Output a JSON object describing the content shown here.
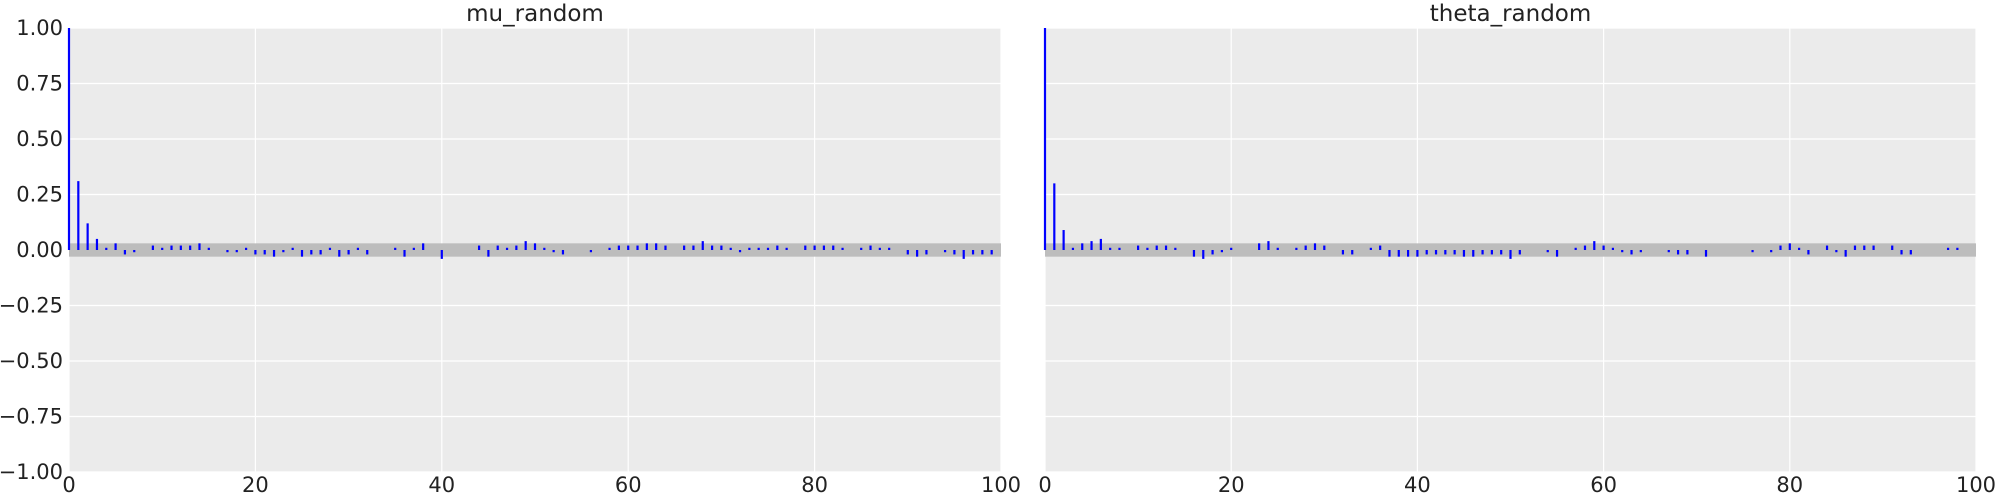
{
  "chart_data": [
    {
      "type": "bar",
      "title": "mu_random",
      "xlabel": "",
      "ylabel": "",
      "xlim": [
        0,
        100
      ],
      "ylim": [
        -1.0,
        1.0
      ],
      "xticks": [
        "0",
        "20",
        "40",
        "60",
        "80",
        "100"
      ],
      "yticks": [
        "−1.00",
        "−0.75",
        "−0.50",
        "−0.25",
        "0.00",
        "0.25",
        "0.50",
        "0.75",
        "1.00"
      ],
      "grid": true,
      "band_half_width": 0.03,
      "lags": [
        0,
        1,
        2,
        3,
        4,
        5,
        6,
        7,
        8,
        9,
        10,
        11,
        12,
        13,
        14,
        15,
        16,
        17,
        18,
        19,
        20,
        21,
        22,
        23,
        24,
        25,
        26,
        27,
        28,
        29,
        30,
        31,
        32,
        33,
        34,
        35,
        36,
        37,
        38,
        39,
        40,
        41,
        42,
        43,
        44,
        45,
        46,
        47,
        48,
        49,
        50,
        51,
        52,
        53,
        54,
        55,
        56,
        57,
        58,
        59,
        60,
        61,
        62,
        63,
        64,
        65,
        66,
        67,
        68,
        69,
        70,
        71,
        72,
        73,
        74,
        75,
        76,
        77,
        78,
        79,
        80,
        81,
        82,
        83,
        84,
        85,
        86,
        87,
        88,
        89,
        90,
        91,
        92,
        93,
        94,
        95,
        96,
        97,
        98,
        99
      ],
      "values": [
        1.0,
        0.31,
        0.12,
        0.05,
        0.01,
        0.03,
        -0.02,
        -0.01,
        0.0,
        0.02,
        0.01,
        0.02,
        0.02,
        0.02,
        0.03,
        0.01,
        0.0,
        -0.01,
        -0.01,
        0.01,
        -0.02,
        -0.02,
        -0.03,
        -0.01,
        0.01,
        -0.03,
        -0.02,
        -0.02,
        0.01,
        -0.03,
        -0.02,
        0.01,
        -0.02,
        0.0,
        0.0,
        0.01,
        -0.03,
        0.01,
        0.03,
        0.0,
        -0.04,
        0.0,
        0.0,
        0.0,
        0.02,
        -0.03,
        0.02,
        0.01,
        0.02,
        0.04,
        0.03,
        0.01,
        -0.01,
        -0.02,
        0.0,
        0.0,
        -0.01,
        0.0,
        0.01,
        0.02,
        0.02,
        0.02,
        0.03,
        0.03,
        0.02,
        0.0,
        0.02,
        0.02,
        0.04,
        0.02,
        0.02,
        0.01,
        -0.01,
        0.01,
        0.01,
        0.01,
        0.02,
        0.01,
        0.0,
        0.02,
        0.02,
        0.02,
        0.02,
        0.01,
        0.0,
        0.01,
        0.02,
        0.01,
        0.01,
        0.0,
        -0.02,
        -0.03,
        -0.02,
        0.0,
        -0.01,
        -0.02,
        -0.04,
        -0.02,
        -0.02,
        -0.02
      ]
    },
    {
      "type": "bar",
      "title": "theta_random",
      "xlabel": "",
      "ylabel": "",
      "xlim": [
        0,
        100
      ],
      "ylim": [
        -1.0,
        1.0
      ],
      "xticks": [
        "0",
        "20",
        "40",
        "60",
        "80",
        "100"
      ],
      "yticks": [
        "−1.00",
        "−0.75",
        "−0.50",
        "−0.25",
        "0.00",
        "0.25",
        "0.50",
        "0.75",
        "1.00"
      ],
      "grid": true,
      "band_half_width": 0.03,
      "lags": [
        0,
        1,
        2,
        3,
        4,
        5,
        6,
        7,
        8,
        9,
        10,
        11,
        12,
        13,
        14,
        15,
        16,
        17,
        18,
        19,
        20,
        21,
        22,
        23,
        24,
        25,
        26,
        27,
        28,
        29,
        30,
        31,
        32,
        33,
        34,
        35,
        36,
        37,
        38,
        39,
        40,
        41,
        42,
        43,
        44,
        45,
        46,
        47,
        48,
        49,
        50,
        51,
        52,
        53,
        54,
        55,
        56,
        57,
        58,
        59,
        60,
        61,
        62,
        63,
        64,
        65,
        66,
        67,
        68,
        69,
        70,
        71,
        72,
        73,
        74,
        75,
        76,
        77,
        78,
        79,
        80,
        81,
        82,
        83,
        84,
        85,
        86,
        87,
        88,
        89,
        90,
        91,
        92,
        93,
        94,
        95,
        96,
        97,
        98,
        99
      ],
      "values": [
        1.0,
        0.3,
        0.09,
        0.01,
        0.03,
        0.04,
        0.05,
        0.01,
        0.01,
        0.0,
        0.02,
        0.01,
        0.02,
        0.02,
        0.01,
        0.0,
        -0.03,
        -0.04,
        -0.02,
        -0.01,
        0.01,
        0.0,
        0.0,
        0.03,
        0.04,
        0.01,
        0.0,
        0.01,
        0.02,
        0.03,
        0.02,
        0.0,
        -0.02,
        -0.02,
        0.0,
        0.01,
        0.02,
        -0.03,
        -0.03,
        -0.03,
        -0.03,
        -0.02,
        -0.02,
        -0.02,
        -0.02,
        -0.03,
        -0.03,
        -0.02,
        -0.02,
        -0.02,
        -0.04,
        -0.02,
        0.0,
        0.0,
        -0.01,
        -0.03,
        0.0,
        0.01,
        0.02,
        0.04,
        0.02,
        0.01,
        -0.01,
        -0.02,
        -0.01,
        0.0,
        0.0,
        -0.01,
        -0.02,
        -0.02,
        0.0,
        -0.03,
        0.0,
        0.0,
        0.0,
        0.0,
        -0.01,
        0.0,
        -0.01,
        0.02,
        0.03,
        0.01,
        -0.02,
        0.0,
        0.02,
        -0.01,
        -0.03,
        0.02,
        0.02,
        0.02,
        0.0,
        0.02,
        -0.02,
        -0.02,
        0.0,
        0.0,
        0.0,
        0.01,
        0.01,
        0.0
      ]
    }
  ]
}
